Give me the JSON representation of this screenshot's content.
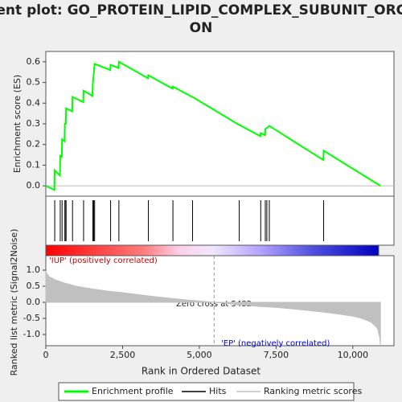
{
  "chart_data": {
    "type": "line",
    "title": [
      "Enrichment plot: GO_PROTEIN_LIPID_COMPLEX_SUBUNIT_ORGANIZATI",
      "ON"
    ],
    "ylabel": "Enrichment score (ES)",
    "y2label": "Ranked list metric (Signal2Noise)",
    "xlabel": "Rank in Ordered Dataset",
    "pos_label": "'IUP' (positively correlated)",
    "neg_label": "'EP' (negatively correlated)",
    "zero_cross_label": "Zero cross at 5482",
    "zero_cross": 5482,
    "xlim": [
      0,
      11340
    ],
    "xticks": [
      0,
      {
        "value": 2500,
        "label": "2,500"
      },
      {
        "value": 5000,
        "label": "5,000"
      },
      {
        "value": 7500,
        "label": "7,500"
      },
      {
        "value": 10000,
        "label": "10,000"
      }
    ],
    "ylim": [
      -0.05,
      0.65
    ],
    "yticks": [
      {
        "value": 0,
        "label": "0.0"
      },
      0.1,
      0.2,
      0.3,
      0.4,
      0.5,
      0.6
    ],
    "y2lim": [
      -1.35,
      1.45
    ],
    "y2ticks": [
      {
        "value": 1,
        "label": "1.0"
      },
      0.5,
      {
        "value": 0,
        "label": "0.0"
      },
      -0.5,
      {
        "value": -1,
        "label": "-1.0"
      }
    ],
    "series": [
      {
        "name": "Enrichment profile",
        "color": "#00ff00",
        "x": [
          0,
          280,
          290,
          460,
          470,
          520,
          530,
          610,
          620,
          650,
          660,
          860,
          870,
          1220,
          1230,
          1520,
          1530,
          1560,
          1590,
          2100,
          2110,
          2370,
          2380,
          3330,
          3340,
          4130,
          4140,
          4770,
          4780,
          6290,
          6300,
          6990,
          7000,
          7140,
          7150,
          7200,
          7280,
          9040,
          9050,
          10900
        ],
        "values": [
          0,
          -0.02,
          0.075,
          0.05,
          0.145,
          0.14,
          0.225,
          0.215,
          0.3,
          0.3,
          0.375,
          0.36,
          0.43,
          0.405,
          0.46,
          0.435,
          0.49,
          0.54,
          0.59,
          0.56,
          0.585,
          0.57,
          0.6,
          0.52,
          0.535,
          0.47,
          0.48,
          0.43,
          0.43,
          0.295,
          0.295,
          0.24,
          0.255,
          0.245,
          0.275,
          0.28,
          0.29,
          0.125,
          0.17,
          0
        ]
      },
      {
        "name": "Hits",
        "color": "#000000",
        "x": [
          290,
          470,
          530,
          620,
          650,
          660,
          870,
          1230,
          1530,
          1560,
          1590,
          2110,
          2380,
          3340,
          4140,
          4780,
          6300,
          7000,
          7150,
          7200,
          7280,
          9050
        ]
      },
      {
        "name": "Ranking metric scores",
        "color": "#c0c0c0",
        "axis": "y2",
        "x": [
          0,
          100,
          300,
          600,
          1000,
          1500,
          2000,
          2500,
          3000,
          3500,
          4000,
          4500,
          5000,
          5482,
          6000,
          6500,
          7000,
          7500,
          8000,
          8500,
          9000,
          9500,
          10000,
          10300,
          10600,
          10800,
          10880,
          10900
        ],
        "values": [
          0.95,
          0.8,
          0.7,
          0.6,
          0.5,
          0.42,
          0.35,
          0.3,
          0.24,
          0.18,
          0.13,
          0.08,
          0.04,
          0,
          -0.05,
          -0.09,
          -0.13,
          -0.16,
          -0.2,
          -0.25,
          -0.3,
          -0.36,
          -0.43,
          -0.5,
          -0.62,
          -0.8,
          -1.1,
          -1.35
        ]
      }
    ]
  }
}
